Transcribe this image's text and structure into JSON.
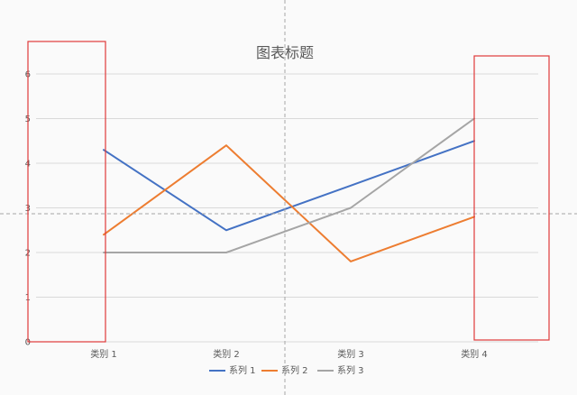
{
  "chart_data": {
    "type": "line",
    "title": "图表标题",
    "categories": [
      "类别 1",
      "类别 2",
      "类别 3",
      "类别 4"
    ],
    "series": [
      {
        "name": "系列 1",
        "values": [
          4.3,
          2.5,
          3.5,
          4.5
        ],
        "color": "#4472c4"
      },
      {
        "name": "系列 2",
        "values": [
          2.4,
          4.4,
          1.8,
          2.8
        ],
        "color": "#ed7d31"
      },
      {
        "name": "系列 3",
        "values": [
          2.0,
          2.0,
          3.0,
          5.0
        ],
        "color": "#a5a5a5"
      }
    ],
    "ylim": [
      0,
      6
    ],
    "yticks": [
      "0",
      "1",
      "2",
      "3",
      "4",
      "5",
      "6"
    ],
    "grid": true,
    "legend": "bottom"
  },
  "colors": {
    "gridline": "#d9d9d9",
    "guide": "#a6a6a6",
    "highlight_box": "#e03a3a"
  }
}
